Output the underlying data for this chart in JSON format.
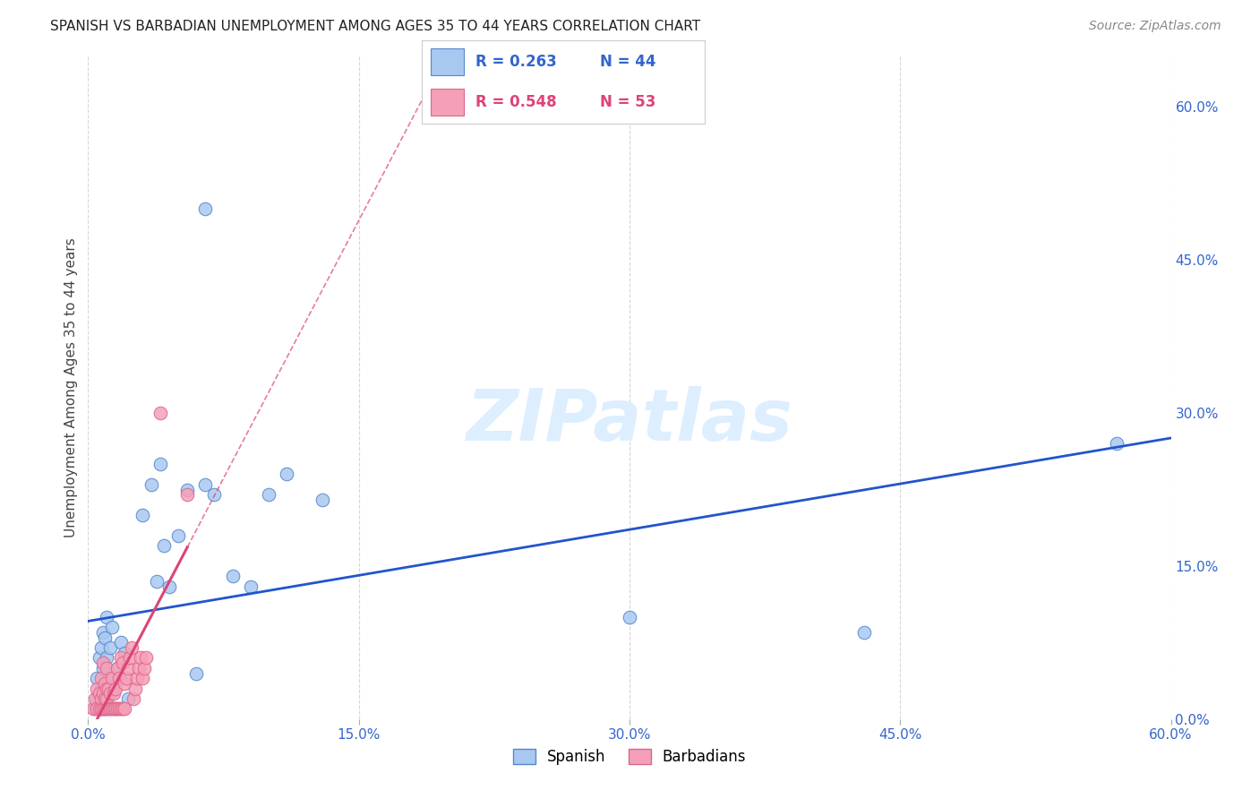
{
  "title": "SPANISH VS BARBADIAN UNEMPLOYMENT AMONG AGES 35 TO 44 YEARS CORRELATION CHART",
  "source": "Source: ZipAtlas.com",
  "ylabel": "Unemployment Among Ages 35 to 44 years",
  "xlim": [
    0.0,
    0.6
  ],
  "ylim": [
    0.0,
    0.65
  ],
  "x_ticks": [
    0.0,
    0.15,
    0.3,
    0.45,
    0.6
  ],
  "y_ticks_right": [
    0.0,
    0.15,
    0.3,
    0.45,
    0.6
  ],
  "spanish_color": "#a8c8f0",
  "spanish_edge_color": "#5588cc",
  "barbadian_color": "#f5a0b8",
  "barbadian_edge_color": "#dd6688",
  "trendline_spanish_color": "#2255cc",
  "trendline_barbadian_color": "#dd4477",
  "background_color": "#ffffff",
  "watermark_text": "ZIPatlas",
  "watermark_color": "#ddeeff",
  "grid_color": "#cccccc",
  "legend_R_spanish": "R = 0.263",
  "legend_N_spanish": "N = 44",
  "legend_R_barbadian": "R = 0.548",
  "legend_N_barbadian": "N = 53",
  "spanish_x": [
    0.004,
    0.005,
    0.005,
    0.006,
    0.006,
    0.007,
    0.007,
    0.007,
    0.008,
    0.008,
    0.009,
    0.009,
    0.01,
    0.01,
    0.01,
    0.011,
    0.012,
    0.013,
    0.014,
    0.015,
    0.016,
    0.018,
    0.02,
    0.022,
    0.03,
    0.035,
    0.038,
    0.04,
    0.042,
    0.045,
    0.05,
    0.055,
    0.06,
    0.065,
    0.07,
    0.08,
    0.09,
    0.1,
    0.11,
    0.13,
    0.065,
    0.3,
    0.43,
    0.57
  ],
  "spanish_y": [
    0.01,
    0.02,
    0.04,
    0.01,
    0.06,
    0.01,
    0.03,
    0.07,
    0.05,
    0.085,
    0.01,
    0.08,
    0.02,
    0.06,
    0.1,
    0.04,
    0.07,
    0.09,
    0.03,
    0.01,
    0.05,
    0.075,
    0.065,
    0.02,
    0.2,
    0.23,
    0.135,
    0.25,
    0.17,
    0.13,
    0.18,
    0.225,
    0.045,
    0.23,
    0.22,
    0.14,
    0.13,
    0.22,
    0.24,
    0.215,
    0.5,
    0.1,
    0.085,
    0.27
  ],
  "barbadian_x": [
    0.003,
    0.004,
    0.005,
    0.005,
    0.006,
    0.006,
    0.007,
    0.007,
    0.007,
    0.008,
    0.008,
    0.008,
    0.009,
    0.009,
    0.009,
    0.01,
    0.01,
    0.01,
    0.01,
    0.011,
    0.011,
    0.012,
    0.012,
    0.013,
    0.013,
    0.014,
    0.014,
    0.015,
    0.015,
    0.016,
    0.016,
    0.017,
    0.017,
    0.018,
    0.018,
    0.019,
    0.019,
    0.02,
    0.02,
    0.021,
    0.022,
    0.023,
    0.024,
    0.025,
    0.026,
    0.027,
    0.028,
    0.029,
    0.03,
    0.031,
    0.032,
    0.04,
    0.055
  ],
  "barbadian_y": [
    0.01,
    0.02,
    0.01,
    0.03,
    0.01,
    0.025,
    0.01,
    0.02,
    0.04,
    0.01,
    0.025,
    0.055,
    0.01,
    0.02,
    0.035,
    0.01,
    0.02,
    0.03,
    0.05,
    0.01,
    0.03,
    0.01,
    0.025,
    0.01,
    0.04,
    0.01,
    0.025,
    0.01,
    0.03,
    0.01,
    0.05,
    0.01,
    0.04,
    0.01,
    0.06,
    0.01,
    0.055,
    0.01,
    0.035,
    0.04,
    0.05,
    0.06,
    0.07,
    0.02,
    0.03,
    0.04,
    0.05,
    0.06,
    0.04,
    0.05,
    0.06,
    0.3,
    0.22
  ],
  "title_fontsize": 11,
  "source_fontsize": 10,
  "tick_fontsize": 11,
  "ylabel_fontsize": 11
}
